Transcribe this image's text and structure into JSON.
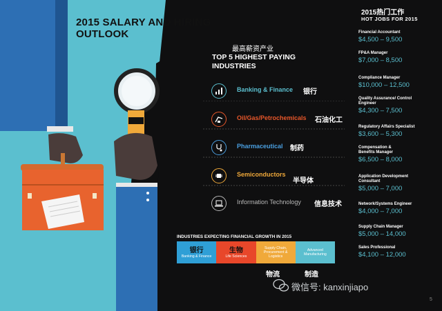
{
  "title": "2015 SALARY AND HIRING OUTLOOK",
  "industries_heading_cn": "最高薪资产业",
  "industries_heading": "TOP 5 HIGHEST PAYING INDUSTRIES",
  "industries": [
    {
      "name": "Banking & Finance",
      "cn": "银行",
      "icon": "bar-chart-icon",
      "color": "#5bbfcf"
    },
    {
      "name": "Oil/Gas/Petrochemicals",
      "cn": "石油化工",
      "icon": "oil-pump-icon",
      "color": "#e8572a"
    },
    {
      "name": "Pharmaceutical",
      "cn": "制药",
      "icon": "stethoscope-icon",
      "color": "#4a9fe0"
    },
    {
      "name": "Semiconductors",
      "cn": "半导体",
      "icon": "chip-icon",
      "color": "#f0a93a"
    },
    {
      "name": "Information Technology",
      "cn": "信息技术",
      "icon": "laptop-icon",
      "color": "#b8b8b8"
    }
  ],
  "growth": {
    "title": "INDUSTRIES EXPECTING FINANCIAL GROWTH IN 2015",
    "cells": [
      {
        "cn": "银行",
        "en": "Banking & Finance",
        "color": "#2f9fd6"
      },
      {
        "cn": "生物",
        "en": "Life Sciences",
        "color": "#e8472a"
      },
      {
        "cn": "",
        "en": "Supply Chain, Procurement & Logistics",
        "color": "#f0a93a"
      },
      {
        "cn": "",
        "en": "Advanced Manufacturing",
        "color": "#5bbfcf"
      }
    ],
    "below": [
      "物流",
      "制造"
    ]
  },
  "hot_jobs": {
    "heading_cn": "2015热门工作",
    "heading": "HOT JOBS FOR 2015",
    "jobs": [
      {
        "title": "Financial Accountant",
        "salary": "$4,500 – 9,500"
      },
      {
        "title": "FP&A Manager",
        "salary": "$7,000 – 8,500"
      },
      {
        "title": "Compliance Manager",
        "salary": "$10,000 – 12,500"
      },
      {
        "title": "Quality Assurance/ Control Engineer",
        "salary": "$4,300 – 7,500"
      },
      {
        "title": "Regulatory Affairs Specialist",
        "salary": "$3,600 – 5,300"
      },
      {
        "title": "Compensation & Benefits Manager",
        "salary": "$6,500 – 8,000"
      },
      {
        "title": "Application Development Consultant",
        "salary": "$5,000 – 7,000"
      },
      {
        "title": "Network/Systems Engineer",
        "salary": "$4,000 – 7,000"
      },
      {
        "title": "Supply Chain Manager",
        "salary": "$5,000 – 14,000"
      },
      {
        "title": "Sales Professional",
        "salary": "$4,100 – 12,000"
      }
    ]
  },
  "watermark": "微信号: kanxinjiapo",
  "page_number": "5"
}
